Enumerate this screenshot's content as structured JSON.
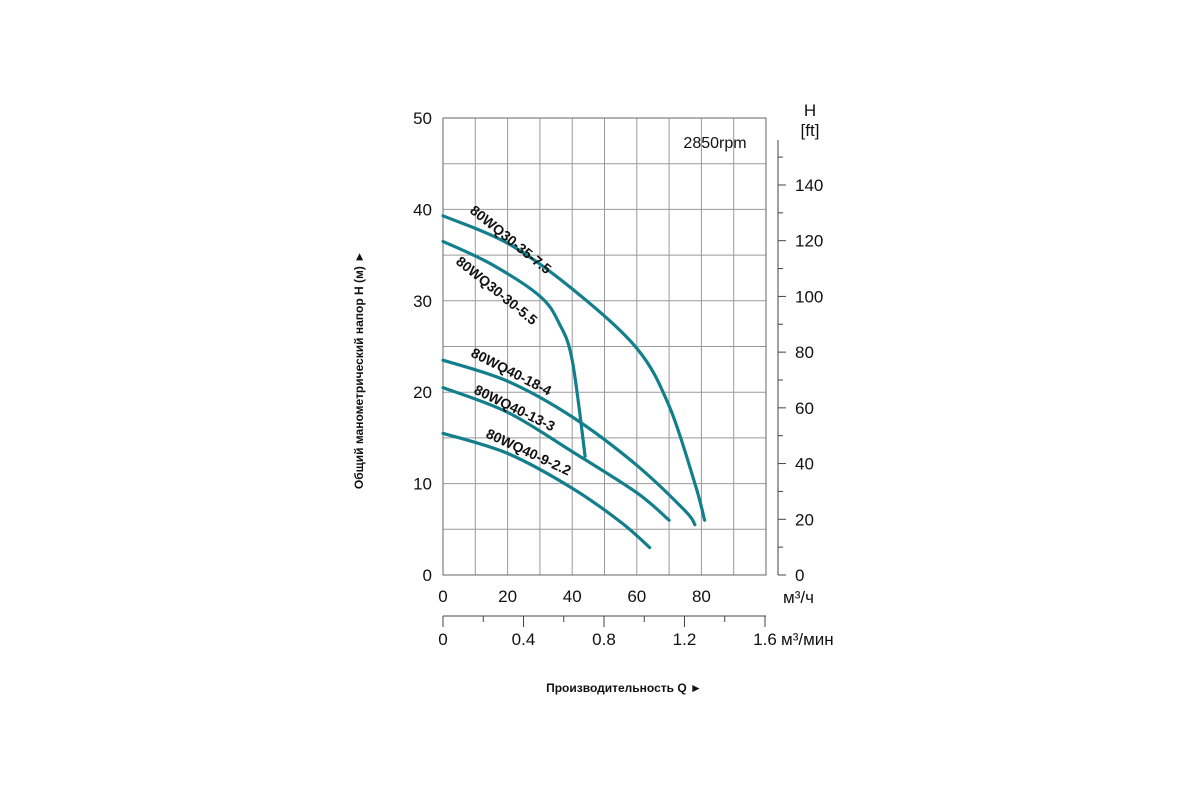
{
  "chart_data": {
    "type": "line",
    "title": "",
    "annotation": "2850rpm",
    "xlabel": "Производительность Q ►",
    "ylabel": "Общий манометрический напор H (м) ►",
    "x_unit": "м³/ч",
    "x2_unit": "м³/мин",
    "y2_title": "H",
    "y2_unit": "[ft]",
    "xlim": [
      0,
      100
    ],
    "ylim": [
      0,
      50
    ],
    "grid": true,
    "x_ticks": [
      0,
      20,
      40,
      60,
      80
    ],
    "x_tick_labels": [
      "0",
      "20",
      "40",
      "60",
      "80"
    ],
    "x2_ticks": [
      0,
      0.4,
      0.8,
      1.2,
      1.6
    ],
    "x2_tick_labels": [
      "0",
      "0.4",
      "0.8",
      "1.2",
      "1.6"
    ],
    "y_ticks": [
      0,
      10,
      20,
      30,
      40,
      50
    ],
    "y_tick_labels": [
      "0",
      "10",
      "20",
      "30",
      "40",
      "50"
    ],
    "y2_ticks": [
      0,
      20,
      40,
      60,
      80,
      100,
      120,
      140
    ],
    "y2_tick_labels": [
      "0",
      "20",
      "40",
      "60",
      "80",
      "100",
      "120",
      "140"
    ],
    "curve_color": "#137f8c",
    "series": [
      {
        "name": "80WQ30-35-7.5",
        "x": [
          0,
          20,
          40,
          60,
          70,
          78,
          81
        ],
        "y": [
          39.3,
          36.3,
          31.3,
          24.8,
          18.5,
          10,
          6.0
        ]
      },
      {
        "name": "80WQ30-30-5.5",
        "x": [
          0,
          15,
          30,
          36,
          40,
          44
        ],
        "y": [
          36.5,
          34.0,
          30.5,
          27.5,
          23.5,
          13.0
        ]
      },
      {
        "name": "80WQ40-18-4",
        "x": [
          0,
          20,
          40,
          60,
          75,
          78
        ],
        "y": [
          23.5,
          21.2,
          17.3,
          12.0,
          7.0,
          5.5
        ]
      },
      {
        "name": "80WQ40-13-3",
        "x": [
          0,
          20,
          40,
          60,
          70
        ],
        "y": [
          20.5,
          17.8,
          13.5,
          9.0,
          6.0
        ]
      },
      {
        "name": "80WQ40-9-2.2",
        "x": [
          0,
          20,
          40,
          55,
          64
        ],
        "y": [
          15.5,
          13.3,
          9.5,
          5.8,
          3.0
        ]
      }
    ]
  }
}
